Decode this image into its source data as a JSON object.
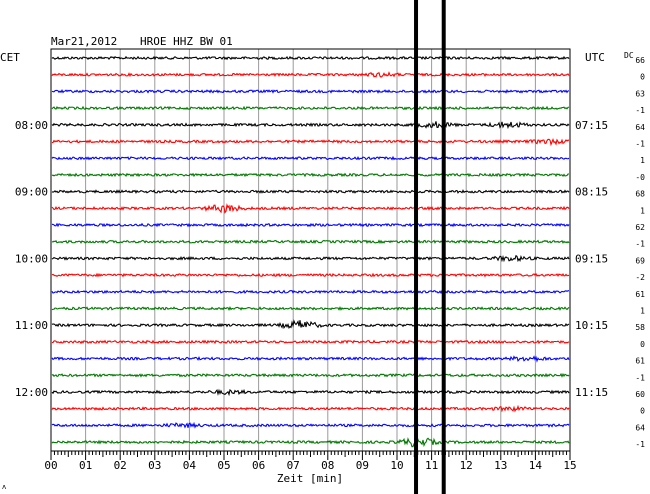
{
  "header": {
    "date": "Mar21,2012",
    "station": "HROE HHZ BW 01"
  },
  "left_timezone": "CET",
  "right_timezone": "UTC",
  "dc_label": "DC",
  "xaxis_label": "Zeit [min]",
  "corner_mark": "ʌ",
  "colors": {
    "black": "#000000",
    "red": "#ff0000",
    "blue": "#0000ff",
    "green": "#007700"
  },
  "chart_data": {
    "type": "line",
    "xlabel": "Zeit [min]",
    "xlim": [
      0,
      15
    ],
    "x_ticks": [
      "00",
      "01",
      "02",
      "03",
      "04",
      "05",
      "06",
      "07",
      "08",
      "09",
      "10",
      "11",
      "12",
      "13",
      "14",
      "15"
    ],
    "trace_count": 24,
    "trace_color_cycle": [
      "black",
      "red",
      "blue",
      "green"
    ],
    "left_time_labels": [
      {
        "trace": 4,
        "label": "08:00"
      },
      {
        "trace": 8,
        "label": "09:00"
      },
      {
        "trace": 12,
        "label": "10:00"
      },
      {
        "trace": 16,
        "label": "11:00"
      },
      {
        "trace": 20,
        "label": "12:00"
      }
    ],
    "right_time_labels": [
      {
        "trace": 4,
        "label": "07:15"
      },
      {
        "trace": 8,
        "label": "08:15"
      },
      {
        "trace": 12,
        "label": "09:15"
      },
      {
        "trace": 16,
        "label": "10:15"
      },
      {
        "trace": 20,
        "label": "11:15"
      }
    ],
    "dc_values": [
      "66",
      "0",
      "63",
      "-1",
      "64",
      "-1",
      "1",
      "-0",
      "68",
      "1",
      "62",
      "-1",
      "69",
      "-2",
      "61",
      "1",
      "58",
      "0",
      "61",
      "-1",
      "60",
      "0",
      "64",
      "-1"
    ],
    "marker_lines_min": [
      10.55,
      11.35
    ],
    "events": [
      {
        "trace": 1,
        "center_min": 9.5,
        "amp": 1.5
      },
      {
        "trace": 4,
        "center_min": 11.1,
        "amp": 2.5
      },
      {
        "trace": 4,
        "center_min": 13.2,
        "amp": 2.5
      },
      {
        "trace": 5,
        "center_min": 14.4,
        "amp": 2.0
      },
      {
        "trace": 9,
        "center_min": 5.0,
        "amp": 3.5
      },
      {
        "trace": 12,
        "center_min": 13.3,
        "amp": 2.0
      },
      {
        "trace": 16,
        "center_min": 7.2,
        "amp": 4.0
      },
      {
        "trace": 18,
        "center_min": 13.8,
        "amp": 2.0
      },
      {
        "trace": 20,
        "center_min": 5.1,
        "amp": 1.5
      },
      {
        "trace": 21,
        "center_min": 13.3,
        "amp": 1.5
      },
      {
        "trace": 22,
        "center_min": 3.8,
        "amp": 1.5
      },
      {
        "trace": 23,
        "center_min": 10.6,
        "amp": 4.5
      }
    ]
  }
}
